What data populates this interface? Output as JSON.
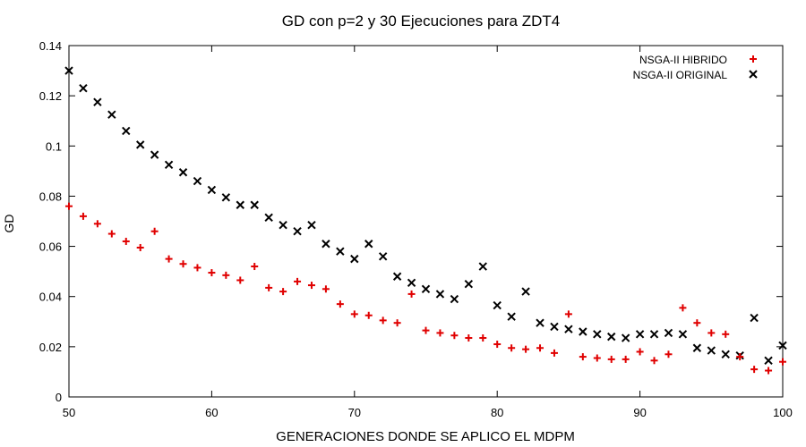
{
  "chart_data": {
    "type": "scatter",
    "title": "GD con p=2 y 30 Ejecuciones para ZDT4",
    "xlabel": "GENERACIONES DONDE SE APLICO EL MDPM",
    "ylabel": "GD",
    "xlim": [
      50,
      100
    ],
    "ylim": [
      0,
      0.14
    ],
    "xticks": [
      50,
      60,
      70,
      80,
      90,
      100
    ],
    "yticks": [
      0,
      0.02,
      0.04,
      0.06,
      0.08,
      0.1,
      0.12,
      0.14
    ],
    "xtick_labels": [
      "50",
      "60",
      "70",
      "80",
      "90",
      "100"
    ],
    "ytick_labels": [
      "0",
      "0.02",
      "0.04",
      "0.06",
      "0.08",
      "0.1",
      "0.12",
      "0.14"
    ],
    "grid": false,
    "legend_position": "top-right",
    "series": [
      {
        "name": "NSGA-II HIBRIDO",
        "marker": "plus",
        "color": "#e00000",
        "x": [
          50,
          51,
          52,
          53,
          54,
          55,
          56,
          57,
          58,
          59,
          60,
          61,
          62,
          63,
          64,
          65,
          66,
          67,
          68,
          69,
          70,
          71,
          72,
          73,
          74,
          75,
          76,
          77,
          78,
          79,
          80,
          81,
          82,
          83,
          84,
          85,
          86,
          87,
          88,
          89,
          90,
          91,
          92,
          93,
          94,
          95,
          96,
          97,
          98,
          99,
          100
        ],
        "y": [
          0.076,
          0.072,
          0.069,
          0.065,
          0.062,
          0.0595,
          0.066,
          0.055,
          0.053,
          0.0515,
          0.0495,
          0.0485,
          0.0465,
          0.052,
          0.0435,
          0.042,
          0.046,
          0.0445,
          0.043,
          0.037,
          0.033,
          0.0325,
          0.0305,
          0.0295,
          0.041,
          0.0265,
          0.0255,
          0.0245,
          0.0235,
          0.0235,
          0.021,
          0.0195,
          0.019,
          0.0195,
          0.0175,
          0.033,
          0.016,
          0.0155,
          0.015,
          0.015,
          0.018,
          0.0145,
          0.017,
          0.0355,
          0.0295,
          0.0255,
          0.025,
          0.016,
          0.011,
          0.0105,
          0.014
        ]
      },
      {
        "name": "NSGA-II ORIGINAL",
        "marker": "cross",
        "color": "#000000",
        "x": [
          50,
          51,
          52,
          53,
          54,
          55,
          56,
          57,
          58,
          59,
          60,
          61,
          62,
          63,
          64,
          65,
          66,
          67,
          68,
          69,
          70,
          71,
          72,
          73,
          74,
          75,
          76,
          77,
          78,
          79,
          80,
          81,
          82,
          83,
          84,
          85,
          86,
          87,
          88,
          89,
          90,
          91,
          92,
          93,
          94,
          95,
          96,
          97,
          98,
          99,
          100
        ],
        "y": [
          0.13,
          0.123,
          0.1175,
          0.1125,
          0.106,
          0.1005,
          0.0965,
          0.0925,
          0.0895,
          0.086,
          0.0825,
          0.0795,
          0.0765,
          0.0765,
          0.0715,
          0.0685,
          0.066,
          0.0685,
          0.061,
          0.058,
          0.055,
          0.061,
          0.056,
          0.048,
          0.0455,
          0.043,
          0.041,
          0.039,
          0.045,
          0.052,
          0.0365,
          0.032,
          0.042,
          0.0295,
          0.028,
          0.027,
          0.026,
          0.025,
          0.024,
          0.0235,
          0.025,
          0.025,
          0.0255,
          0.025,
          0.0195,
          0.0185,
          0.017,
          0.0165,
          0.0315,
          0.0145,
          0.0205
        ]
      }
    ]
  }
}
